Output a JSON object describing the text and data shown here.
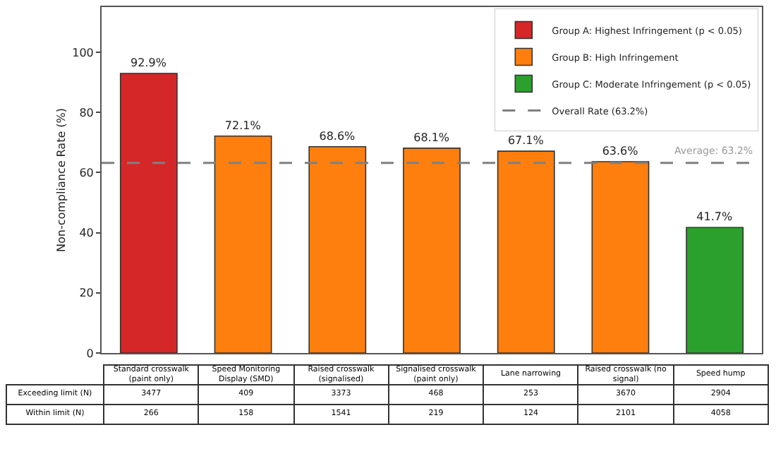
{
  "chart_data": {
    "type": "bar",
    "ylabel": "Non-compliance Rate (%)",
    "categories": [
      "Standard crosswalk (paint only)",
      "Speed Monitoring Display (SMD)",
      "Raised crosswalk (signalised)",
      "Signalised crosswalk (paint only)",
      "Lane narrowing",
      "Raised crosswalk (no signal)",
      "Speed hump"
    ],
    "series": [
      {
        "name": "Group A: Highest Infringement (p < 0.05)",
        "color": "#d62728",
        "values": [
          92.9,
          null,
          null,
          null,
          null,
          null,
          null
        ],
        "value_labels": [
          "92.9%",
          null,
          null,
          null,
          null,
          null,
          null
        ]
      },
      {
        "name": "Group B: High Infringement",
        "color": "#ff7f0e",
        "values": [
          null,
          72.1,
          68.6,
          68.1,
          67.1,
          63.6,
          null
        ],
        "value_labels": [
          null,
          "72.1%",
          "68.6%",
          "68.1%",
          "67.1%",
          "63.6%",
          null
        ]
      },
      {
        "name": "Group C: Moderate Infringement (p < 0.05)",
        "color": "#2ca02c",
        "values": [
          null,
          null,
          null,
          null,
          null,
          null,
          41.7
        ],
        "value_labels": [
          null,
          null,
          null,
          null,
          null,
          null,
          "41.7%"
        ]
      }
    ],
    "ref_lines": [
      {
        "axis": "y",
        "value": 63.2,
        "label": "Overall Rate (63.2%)",
        "color": "#808080",
        "line_style": "dashed"
      }
    ],
    "ylim": [
      0,
      115
    ],
    "yticks": [
      0,
      20,
      40,
      60,
      80,
      100
    ],
    "tick_labels": "y",
    "grid": false,
    "legend": "top right",
    "annotations": [
      {
        "text": "Average: 63.2%",
        "y": 63.2
      },
      "Exceeding limit (N)",
      "3477",
      "409",
      "3373",
      "468",
      "253",
      "3670",
      "2904",
      "Within limit (N)",
      "266",
      "158",
      "1541",
      "219",
      "124",
      "2101",
      "4058"
    ]
  }
}
